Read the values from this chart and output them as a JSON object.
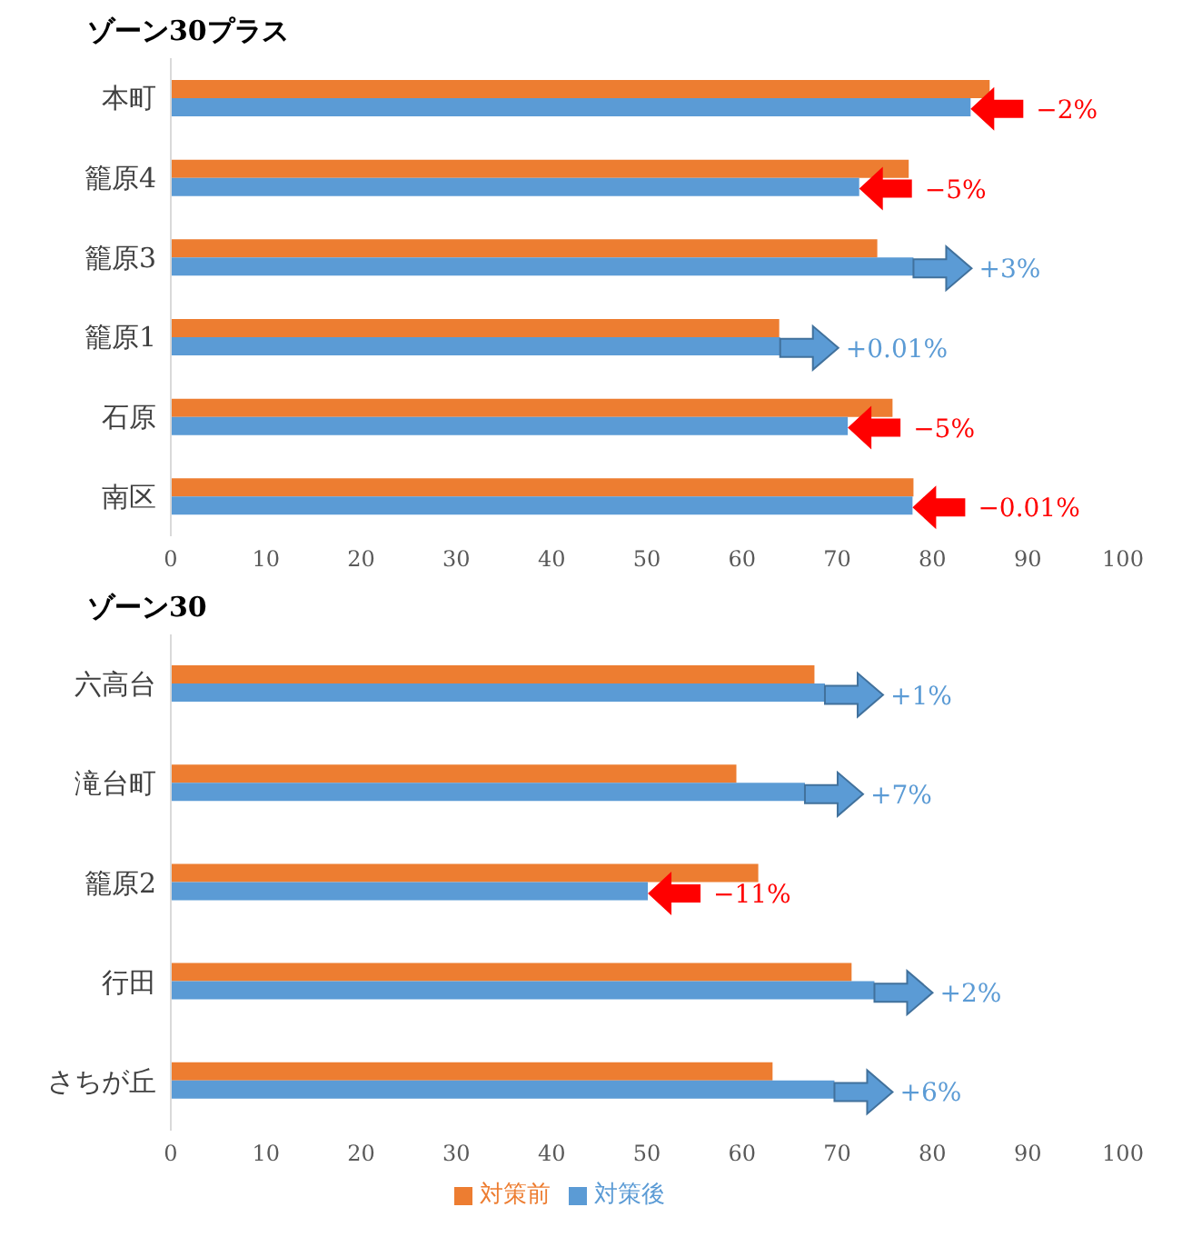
{
  "chart_data": [
    {
      "type": "bar",
      "orientation": "horizontal",
      "title": "ゾーン30プラス",
      "categories": [
        "本町",
        "籠原4",
        "籠原3",
        "籠原1",
        "石原",
        "南区"
      ],
      "series": [
        {
          "color": "#ed7d31",
          "values": [
            86,
            77.5,
            74.2,
            63.9,
            75.8,
            78
          ]
        },
        {
          "color": "#5b9bd5",
          "values": [
            84,
            72.3,
            78,
            64,
            71.1,
            77.9
          ]
        }
      ],
      "xlim": [
        0,
        100
      ],
      "xticks": [
        0,
        10,
        20,
        30,
        40,
        50,
        60,
        70,
        80,
        90,
        100
      ],
      "grid": false,
      "legend": false,
      "annotations": [
        {
          "text": "−2%",
          "x": 84,
          "y": "本町"
        },
        {
          "text": "−5%",
          "x": 72.3,
          "y": "籠原4"
        },
        {
          "text": "+3%",
          "x": 78,
          "y": "籠原3"
        },
        {
          "text": "+0.01%",
          "x": 64,
          "y": "籠原1"
        },
        {
          "text": "−5%",
          "x": 71.1,
          "y": "石原"
        },
        {
          "text": "−0.01%",
          "x": 77.9,
          "y": "南区"
        }
      ]
    },
    {
      "type": "bar",
      "orientation": "horizontal",
      "title": "ゾーン30",
      "categories": [
        "六高台",
        "滝台町",
        "籠原2",
        "行田",
        "さちが丘"
      ],
      "series": [
        {
          "name": "対策前",
          "color": "#ed7d31",
          "values": [
            67.6,
            59.4,
            61.7,
            71.5,
            63.2
          ]
        },
        {
          "name": "対策後",
          "color": "#5b9bd5",
          "values": [
            68.7,
            66.6,
            50.1,
            73.9,
            69.7
          ]
        }
      ],
      "xlim": [
        0,
        100
      ],
      "xticks": [
        0,
        10,
        20,
        30,
        40,
        50,
        60,
        70,
        80,
        90,
        100
      ],
      "grid": false,
      "legend": "bottom",
      "annotations": [
        {
          "text": "+1%",
          "x": 68.7,
          "y": "六高台"
        },
        {
          "text": "+7%",
          "x": 66.6,
          "y": "滝台町"
        },
        {
          "text": "−11%",
          "x": 50.1,
          "y": "籠原2"
        },
        {
          "text": "+2%",
          "x": 73.9,
          "y": "行田"
        },
        {
          "text": "+6%",
          "x": 69.7,
          "y": "さちが丘"
        }
      ]
    }
  ]
}
